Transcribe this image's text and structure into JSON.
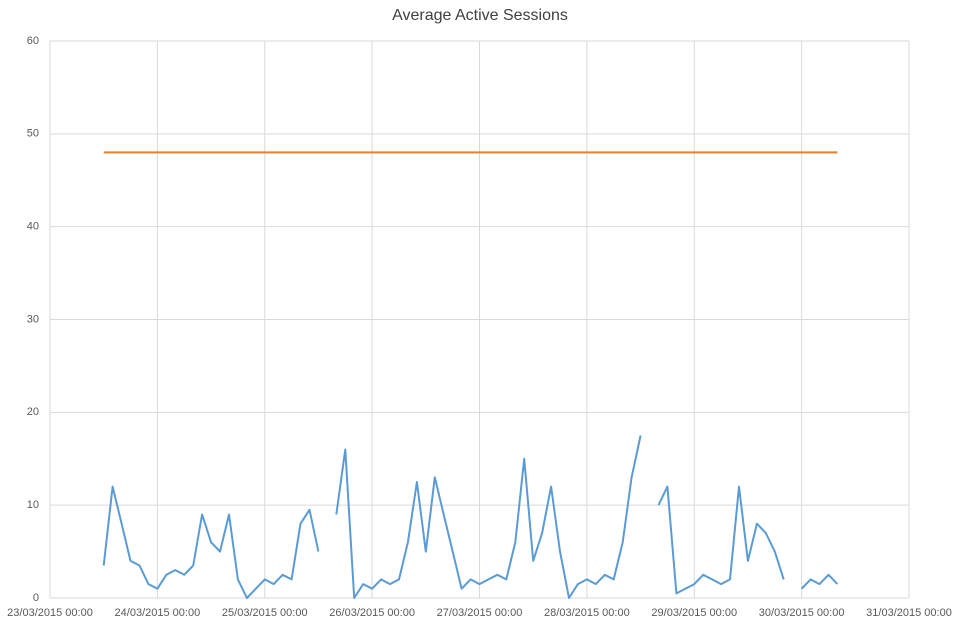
{
  "chart_data": {
    "type": "line",
    "title": "Average Active Sessions",
    "xlim": [
      "2015-03-23 00:00",
      "2015-03-31 00:00"
    ],
    "xticks": [
      {
        "value": "2015-03-23 00:00",
        "label": "23/03/2015 00:00"
      },
      {
        "value": "2015-03-24 00:00",
        "label": "24/03/2015 00:00"
      },
      {
        "value": "2015-03-25 00:00",
        "label": "25/03/2015 00:00"
      },
      {
        "value": "2015-03-26 00:00",
        "label": "26/03/2015 00:00"
      },
      {
        "value": "2015-03-27 00:00",
        "label": "27/03/2015 00:00"
      },
      {
        "value": "2015-03-28 00:00",
        "label": "28/03/2015 00:00"
      },
      {
        "value": "2015-03-29 00:00",
        "label": "29/03/2015 00:00"
      },
      {
        "value": "2015-03-30 00:00",
        "label": "30/03/2015 00:00"
      },
      {
        "value": "2015-03-31 00:00",
        "label": "31/03/2015 00:00"
      }
    ],
    "ylim": [
      0,
      60
    ],
    "yticks": [
      0,
      10,
      20,
      30,
      40,
      50,
      60
    ],
    "grid": true,
    "series": [
      {
        "color": "#5b9bd5",
        "x": [
          "2015-03-23 12:00",
          "2015-03-23 14:00",
          "2015-03-23 16:00",
          "2015-03-23 18:00",
          "2015-03-23 20:00",
          "2015-03-23 22:00",
          "2015-03-24 00:00",
          "2015-03-24 02:00",
          "2015-03-24 04:00",
          "2015-03-24 06:00",
          "2015-03-24 08:00",
          "2015-03-24 10:00",
          "2015-03-24 12:00",
          "2015-03-24 14:00",
          "2015-03-24 16:00",
          "2015-03-24 18:00",
          "2015-03-24 20:00",
          "2015-03-24 22:00",
          "2015-03-25 00:00",
          "2015-03-25 02:00",
          "2015-03-25 04:00",
          "2015-03-25 06:00",
          "2015-03-25 08:00",
          "2015-03-25 10:00",
          "2015-03-25 12:00",
          "2015-03-25 14:00",
          "2015-03-25 16:00",
          "2015-03-25 18:00",
          "2015-03-25 20:00",
          "2015-03-25 22:00",
          "2015-03-26 00:00",
          "2015-03-26 02:00",
          "2015-03-26 04:00",
          "2015-03-26 06:00",
          "2015-03-26 08:00",
          "2015-03-26 10:00",
          "2015-03-26 12:00",
          "2015-03-26 14:00",
          "2015-03-26 16:00",
          "2015-03-26 18:00",
          "2015-03-26 20:00",
          "2015-03-26 22:00",
          "2015-03-27 00:00",
          "2015-03-27 02:00",
          "2015-03-27 04:00",
          "2015-03-27 06:00",
          "2015-03-27 08:00",
          "2015-03-27 10:00",
          "2015-03-27 12:00",
          "2015-03-27 14:00",
          "2015-03-27 16:00",
          "2015-03-27 18:00",
          "2015-03-27 20:00",
          "2015-03-27 22:00",
          "2015-03-28 00:00",
          "2015-03-28 02:00",
          "2015-03-28 04:00",
          "2015-03-28 06:00",
          "2015-03-28 08:00",
          "2015-03-28 10:00",
          "2015-03-28 12:00",
          "2015-03-28 14:00",
          "2015-03-28 16:00",
          "2015-03-28 18:00",
          "2015-03-28 20:00",
          "2015-03-28 22:00",
          "2015-03-29 00:00",
          "2015-03-29 02:00",
          "2015-03-29 04:00",
          "2015-03-29 06:00",
          "2015-03-29 08:00",
          "2015-03-29 10:00",
          "2015-03-29 12:00",
          "2015-03-29 14:00",
          "2015-03-29 16:00",
          "2015-03-29 18:00",
          "2015-03-29 20:00",
          "2015-03-29 22:00",
          "2015-03-30 00:00",
          "2015-03-30 02:00",
          "2015-03-30 04:00",
          "2015-03-30 06:00",
          "2015-03-30 08:00"
        ],
        "values": [
          3.5,
          12,
          8,
          4,
          3.5,
          1.5,
          1,
          2.5,
          3,
          2.5,
          3.5,
          9,
          6,
          5,
          9,
          2,
          0,
          1,
          2,
          1.5,
          2.5,
          2,
          8,
          9.5,
          5,
          null,
          9,
          16,
          0,
          1.5,
          1,
          2,
          1.5,
          2,
          6,
          12.5,
          5,
          13,
          9,
          5,
          1,
          2,
          1.5,
          2,
          2.5,
          2,
          6,
          15,
          4,
          7,
          12,
          5,
          0,
          1.5,
          2,
          1.5,
          2.5,
          2,
          6,
          13,
          17.5,
          null,
          10,
          12,
          0.5,
          1,
          1.5,
          2.5,
          2,
          1.5,
          2,
          12,
          4,
          8,
          7,
          5,
          2,
          null,
          1,
          2,
          1.5,
          2.5,
          1.5
        ]
      },
      {
        "color": "#ed7d31",
        "x": [
          "2015-03-23 12:00",
          "2015-03-30 08:00"
        ],
        "values": [
          48,
          48
        ]
      }
    ]
  }
}
